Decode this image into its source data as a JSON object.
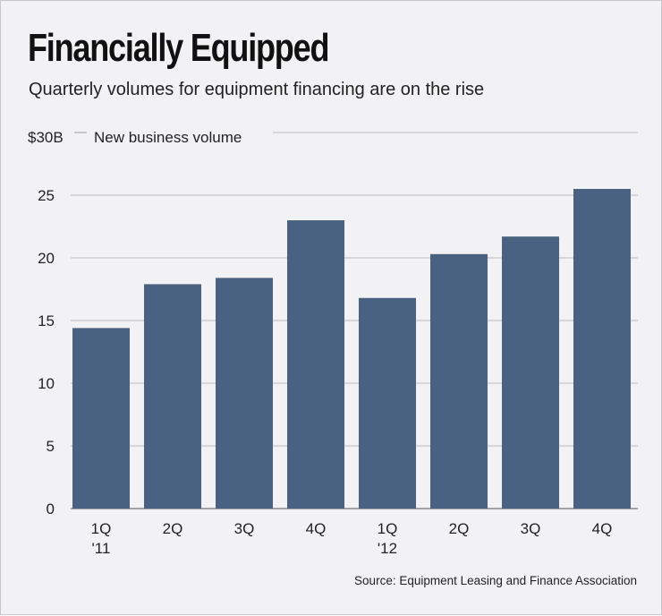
{
  "chart_data": {
    "type": "bar",
    "title": "Financially Equipped",
    "subtitle": "Quarterly volumes for equipment financing are on the rise",
    "ylabel": "New business volume",
    "top_tick_label": "$30B",
    "categories": [
      [
        "1Q",
        "'11"
      ],
      [
        "2Q",
        ""
      ],
      [
        "3Q",
        ""
      ],
      [
        "4Q",
        ""
      ],
      [
        "1Q",
        "'12"
      ],
      [
        "2Q",
        ""
      ],
      [
        "3Q",
        ""
      ],
      [
        "4Q",
        ""
      ]
    ],
    "values": [
      14.4,
      17.9,
      18.4,
      23.0,
      16.8,
      20.3,
      21.7,
      25.5
    ],
    "yticks": [
      0,
      5,
      10,
      15,
      20,
      25
    ],
    "ylim": [
      0,
      30
    ],
    "grid": true,
    "bar_color": "#4a6281",
    "source": "Source: Equipment Leasing and Finance Association"
  }
}
